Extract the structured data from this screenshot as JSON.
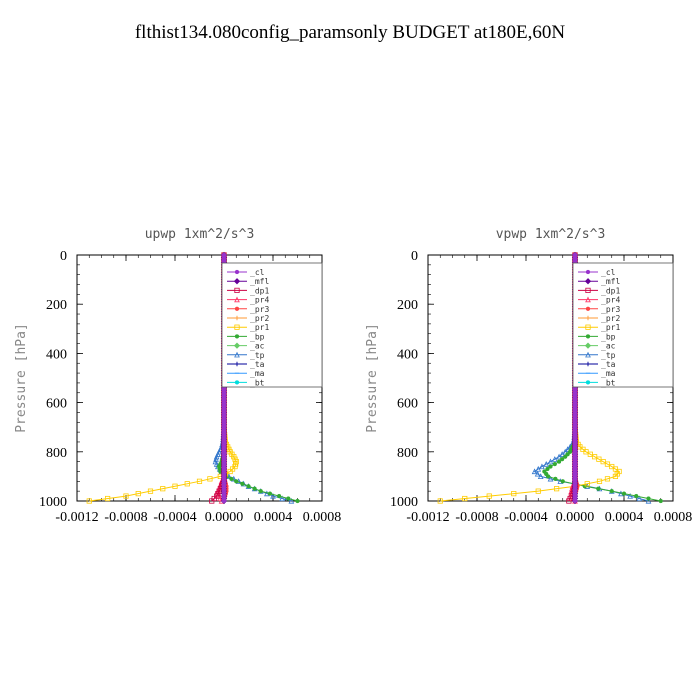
{
  "title": "flthist134.080config_paramsonly  BUDGET at180E,60N",
  "chart_data": [
    {
      "type": "line",
      "panel_title": "upwp   1xm^2/s^3",
      "ylabel": "Pressure [hPa]",
      "xlim": [
        -0.0012,
        0.0008
      ],
      "ylim": [
        1000,
        0
      ],
      "xticks": [
        "-0.0012",
        "-0.0008",
        "-0.0004",
        "0.0000",
        "0.0004",
        "0.0008"
      ],
      "yticks": [
        "0",
        "200",
        "400",
        "600",
        "800",
        "1000"
      ],
      "pressure": [
        0,
        200,
        400,
        600,
        700,
        760,
        780,
        800,
        820,
        840,
        860,
        880,
        900,
        920,
        940,
        960,
        980,
        1000
      ],
      "series": [
        {
          "name": "_cl",
          "color": "#9933cc",
          "values": [
            0,
            0,
            0,
            0,
            0,
            0,
            0,
            0,
            0,
            0,
            0,
            0,
            0,
            0,
            0,
            0,
            0,
            0
          ]
        },
        {
          "name": "_mfl",
          "color": "#660099",
          "values": [
            0,
            0,
            0,
            0,
            0,
            0,
            0,
            0,
            0,
            0,
            0,
            0,
            0,
            0,
            0,
            0,
            0,
            0
          ]
        },
        {
          "name": "_dp1",
          "color": "#cc0044",
          "values": [
            0,
            0,
            0,
            0,
            0,
            0,
            0,
            0,
            0,
            0,
            0,
            0,
            0,
            0,
            -2e-05,
            -4e-05,
            -6e-05,
            -0.0001
          ]
        },
        {
          "name": "_pr4",
          "color": "#ff3366",
          "values": [
            0,
            0,
            0,
            0,
            0,
            0,
            0,
            0,
            0,
            0,
            0,
            0,
            0,
            -2e-05,
            -3e-05,
            -5e-05,
            -4e-05,
            -2e-05
          ]
        },
        {
          "name": "_pr3",
          "color": "#ff4444",
          "values": [
            0,
            0,
            0,
            0,
            0,
            0,
            0,
            0,
            0,
            0,
            0,
            0,
            0,
            1e-05,
            2e-05,
            2e-05,
            1e-05,
            0
          ]
        },
        {
          "name": "_pr2",
          "color": "#ff9933",
          "values": [
            0,
            0,
            0,
            0,
            0,
            0,
            0,
            0,
            0,
            0,
            0,
            0,
            0,
            0,
            0,
            0,
            0,
            0
          ]
        },
        {
          "name": "_pr1",
          "color": "#ffcc00",
          "values": [
            0,
            0,
            0,
            0,
            0,
            1e-05,
            3e-05,
            5e-05,
            8e-05,
            0.0001,
            9e-05,
            5e-05,
            -3e-05,
            -0.0002,
            -0.0004,
            -0.0006,
            -0.0008,
            -0.0011
          ]
        },
        {
          "name": "_bp",
          "color": "#33aa33",
          "values": [
            0,
            0,
            0,
            0,
            0,
            0,
            0,
            0,
            -1e-05,
            -2e-05,
            -4e-05,
            -3e-05,
            2e-05,
            0.0001,
            0.0002,
            0.0003,
            0.00045,
            0.0006
          ]
        },
        {
          "name": "_ac",
          "color": "#66cc66",
          "values": [
            0,
            0,
            0,
            0,
            0,
            0,
            0,
            0,
            0,
            0,
            0,
            0,
            0,
            0,
            0,
            0,
            0,
            0
          ]
        },
        {
          "name": "_tp",
          "color": "#3377cc",
          "values": [
            0,
            0,
            0,
            0,
            0,
            -1e-05,
            -2e-05,
            -4e-05,
            -6e-05,
            -7e-05,
            -5e-05,
            -2e-05,
            4e-05,
            0.00012,
            0.0002,
            0.0003,
            0.0004,
            0.00055
          ]
        },
        {
          "name": "_ta",
          "color": "#000099",
          "values": [
            0,
            0,
            0,
            0,
            0,
            0,
            0,
            0,
            0,
            0,
            0,
            0,
            0,
            0,
            0,
            0,
            0,
            0
          ]
        },
        {
          "name": "_ma",
          "color": "#3399ff",
          "values": [
            0,
            0,
            0,
            0,
            0,
            0,
            0,
            0,
            0,
            0,
            0,
            0,
            0,
            0,
            0,
            0,
            0,
            0
          ]
        },
        {
          "name": "_bt",
          "color": "#00dddd",
          "values": [
            0,
            0,
            0,
            0,
            0,
            0,
            0,
            0,
            0,
            0,
            0,
            0,
            0,
            0,
            0,
            0,
            0,
            0
          ]
        }
      ]
    },
    {
      "type": "line",
      "panel_title": "vpwp   1xm^2/s^3",
      "ylabel": "Pressure [hPa]",
      "xlim": [
        -0.0012,
        0.0008
      ],
      "ylim": [
        1000,
        0
      ],
      "xticks": [
        "-0.0012",
        "-0.0008",
        "-0.0004",
        "0.0000",
        "0.0004",
        "0.0008"
      ],
      "yticks": [
        "0",
        "200",
        "400",
        "600",
        "800",
        "1000"
      ],
      "pressure": [
        0,
        200,
        400,
        600,
        700,
        760,
        780,
        800,
        820,
        840,
        860,
        880,
        900,
        920,
        940,
        960,
        980,
        1000
      ],
      "series": [
        {
          "name": "_cl",
          "color": "#9933cc",
          "values": [
            0,
            0,
            0,
            0,
            0,
            0,
            0,
            0,
            0,
            0,
            0,
            0,
            0,
            0,
            0,
            0,
            0,
            0
          ]
        },
        {
          "name": "_mfl",
          "color": "#660099",
          "values": [
            0,
            0,
            0,
            0,
            0,
            0,
            0,
            0,
            0,
            0,
            0,
            0,
            0,
            0,
            0,
            0,
            0,
            0
          ]
        },
        {
          "name": "_dp1",
          "color": "#cc0044",
          "values": [
            0,
            0,
            0,
            0,
            0,
            0,
            0,
            0,
            0,
            0,
            0,
            0,
            0,
            0,
            0,
            -1e-05,
            -3e-05,
            -5e-05
          ]
        },
        {
          "name": "_pr4",
          "color": "#ff3366",
          "values": [
            0,
            0,
            0,
            0,
            0,
            0,
            0,
            0,
            0,
            0,
            0,
            0,
            0,
            0,
            -2e-05,
            -3e-05,
            -2e-05,
            0
          ]
        },
        {
          "name": "_pr3",
          "color": "#ff4444",
          "values": [
            0,
            0,
            0,
            0,
            0,
            0,
            0,
            0,
            0,
            0,
            0,
            0,
            0,
            1e-05,
            2e-05,
            1e-05,
            0,
            0
          ]
        },
        {
          "name": "_pr2",
          "color": "#ff9933",
          "values": [
            0,
            0,
            0,
            0,
            0,
            0,
            0,
            0,
            0,
            0,
            0,
            0,
            0,
            0,
            0,
            0,
            0,
            0
          ]
        },
        {
          "name": "_pr1",
          "color": "#ffcc00",
          "values": [
            0,
            0,
            0,
            0,
            0,
            1e-05,
            4e-05,
            9e-05,
            0.00016,
            0.00023,
            0.0003,
            0.00036,
            0.00033,
            0.0002,
            0,
            -0.0003,
            -0.0007,
            -0.0011
          ]
        },
        {
          "name": "_bp",
          "color": "#33aa33",
          "values": [
            0,
            0,
            0,
            0,
            0,
            0,
            -2e-05,
            -4e-05,
            -8e-05,
            -0.00013,
            -0.0002,
            -0.00025,
            -0.00022,
            -0.0001,
            8e-05,
            0.0003,
            0.0005,
            0.0007
          ]
        },
        {
          "name": "_ac",
          "color": "#66cc66",
          "values": [
            0,
            0,
            0,
            0,
            0,
            0,
            0,
            0,
            0,
            0,
            0,
            0,
            0,
            0,
            0,
            0,
            0,
            0
          ]
        },
        {
          "name": "_tp",
          "color": "#3377cc",
          "values": [
            0,
            0,
            0,
            0,
            0,
            -1e-05,
            -4e-05,
            -8e-05,
            -0.00013,
            -0.0002,
            -0.00027,
            -0.00033,
            -0.00028,
            -0.00012,
            0.0001,
            0.0003,
            0.00045,
            0.0006
          ]
        },
        {
          "name": "_ta",
          "color": "#000099",
          "values": [
            0,
            0,
            0,
            0,
            0,
            0,
            0,
            0,
            0,
            0,
            0,
            0,
            0,
            0,
            0,
            0,
            0,
            0
          ]
        },
        {
          "name": "_ma",
          "color": "#3399ff",
          "values": [
            0,
            0,
            0,
            0,
            0,
            0,
            0,
            0,
            0,
            0,
            0,
            0,
            0,
            0,
            0,
            0,
            0,
            0
          ]
        },
        {
          "name": "_bt",
          "color": "#00dddd",
          "values": [
            0,
            0,
            0,
            0,
            0,
            0,
            0,
            0,
            0,
            0,
            0,
            0,
            0,
            0,
            0,
            0,
            0,
            0
          ]
        }
      ]
    }
  ]
}
